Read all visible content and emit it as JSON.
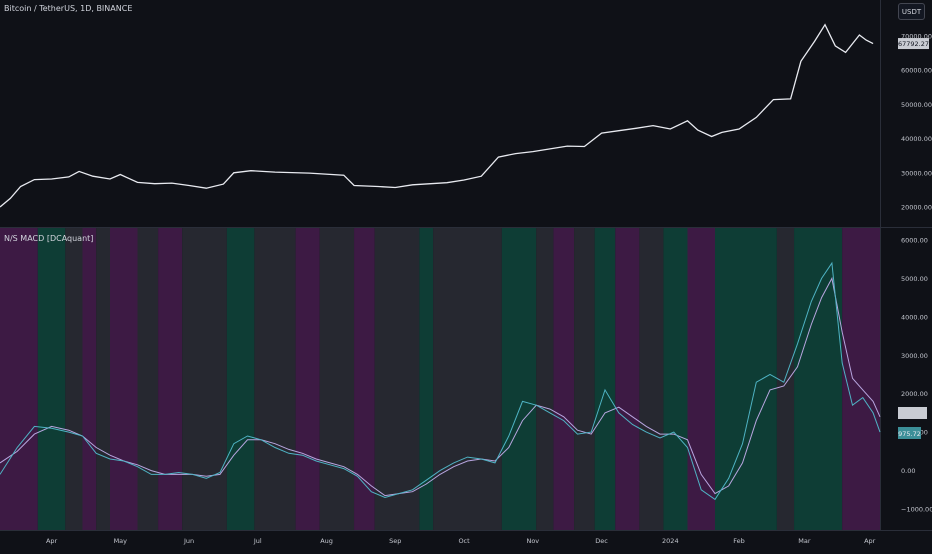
{
  "header": {
    "symbol_title": "Bitcoin / TetherUS, 1D, BINANCE",
    "unit_button": "USDT"
  },
  "indicator": {
    "title": "N/S MACD [DCAquant]"
  },
  "colors": {
    "background": "#0f1117",
    "price_line": "#e8eaf0",
    "macd_line": "#4fb3c4",
    "signal_line": "#b8a6e0",
    "bull_zone": "#0e3d35",
    "bear_zone": "#3d1a44",
    "neutral_zone": "#262830",
    "axis_text": "#c3c6ce",
    "price_label_bg": "#c9ccd3",
    "macd_label_bg": "#3c8f98"
  },
  "price_axis": {
    "ticks": [
      "70000.00",
      "60000.00",
      "50000.00",
      "40000.00",
      "30000.00",
      "20000.00"
    ],
    "last_label": "67792.27"
  },
  "macd_axis": {
    "ticks": [
      "6000.00",
      "5000.00",
      "4000.00",
      "3000.00",
      "2000.00",
      "1000.00",
      "0.00",
      "−1000.00"
    ],
    "signal_label": "",
    "macd_label": "975.72"
  },
  "time_axis": {
    "labels": [
      "Apr",
      "May",
      "Jun",
      "Jul",
      "Aug",
      "Sep",
      "Oct",
      "Nov",
      "Dec",
      "2024",
      "Feb",
      "Mar",
      "Apr"
    ]
  },
  "chart_data": [
    {
      "type": "line",
      "title": "",
      "ylabel": "",
      "ylim": [
        15000,
        75000
      ],
      "x_range": [
        0,
        25
      ],
      "x_tick_positions": [
        1.5,
        3.5,
        5.5,
        7.5,
        9.5,
        11.5,
        13.5,
        15.5,
        17.5,
        19.5,
        21.5,
        23.4,
        25.3
      ],
      "series": [
        {
          "values": [
            [
              0,
              20000
            ],
            [
              0.3,
              22500
            ],
            [
              0.6,
              26000
            ],
            [
              1,
              28000
            ],
            [
              1.5,
              28200
            ],
            [
              2,
              28800
            ],
            [
              2.3,
              30400
            ],
            [
              2.7,
              29000
            ],
            [
              3.2,
              28200
            ],
            [
              3.5,
              29500
            ],
            [
              4,
              27200
            ],
            [
              4.5,
              26800
            ],
            [
              5,
              27000
            ],
            [
              5.5,
              26300
            ],
            [
              6,
              25500
            ],
            [
              6.5,
              26700
            ],
            [
              6.8,
              30000
            ],
            [
              7.3,
              30600
            ],
            [
              8,
              30200
            ],
            [
              9,
              29900
            ],
            [
              10,
              29300
            ],
            [
              10.3,
              26300
            ],
            [
              11,
              26000
            ],
            [
              11.5,
              25700
            ],
            [
              12,
              26500
            ],
            [
              13,
              27100
            ],
            [
              13.5,
              27900
            ],
            [
              14,
              29000
            ],
            [
              14.5,
              34600
            ],
            [
              15,
              35600
            ],
            [
              15.5,
              36200
            ],
            [
              16,
              37000
            ],
            [
              16.5,
              37800
            ],
            [
              17,
              37700
            ],
            [
              17.5,
              41600
            ],
            [
              18,
              42300
            ],
            [
              18.5,
              43000
            ],
            [
              19,
              43800
            ],
            [
              19.5,
              42800
            ],
            [
              20,
              45200
            ],
            [
              20.3,
              42500
            ],
            [
              20.7,
              40600
            ],
            [
              21,
              41800
            ],
            [
              21.5,
              42800
            ],
            [
              22,
              46200
            ],
            [
              22.5,
              51400
            ],
            [
              23,
              51600
            ],
            [
              23.3,
              62600
            ],
            [
              23.7,
              68500
            ],
            [
              24,
              73300
            ],
            [
              24.3,
              67100
            ],
            [
              24.6,
              65200
            ],
            [
              25,
              70300
            ],
            [
              25.2,
              68800
            ],
            [
              25.4,
              67792
            ]
          ]
        }
      ]
    },
    {
      "type": "line",
      "title": "",
      "ylabel": "",
      "ylim": [
        -1000,
        6000
      ],
      "x_range": [
        0,
        25
      ],
      "x_tick_positions": [
        1.5,
        3.5,
        5.5,
        7.5,
        9.5,
        11.5,
        13.5,
        15.5,
        17.5,
        19.5,
        21.5,
        23.4,
        25.3
      ],
      "zones": [
        {
          "from": 0,
          "to": 1.1,
          "state": "bear"
        },
        {
          "from": 1.1,
          "to": 1.9,
          "state": "bull"
        },
        {
          "from": 1.9,
          "to": 2.4,
          "state": "neutral"
        },
        {
          "from": 2.4,
          "to": 2.8,
          "state": "bear"
        },
        {
          "from": 2.8,
          "to": 3.2,
          "state": "neutral"
        },
        {
          "from": 3.2,
          "to": 4.0,
          "state": "bear"
        },
        {
          "from": 4.0,
          "to": 4.6,
          "state": "neutral"
        },
        {
          "from": 4.6,
          "to": 5.3,
          "state": "bear"
        },
        {
          "from": 5.3,
          "to": 6.6,
          "state": "neutral"
        },
        {
          "from": 6.6,
          "to": 7.4,
          "state": "bull"
        },
        {
          "from": 7.4,
          "to": 8.6,
          "state": "neutral"
        },
        {
          "from": 8.6,
          "to": 9.3,
          "state": "bear"
        },
        {
          "from": 9.3,
          "to": 10.3,
          "state": "neutral"
        },
        {
          "from": 10.3,
          "to": 10.9,
          "state": "bear"
        },
        {
          "from": 10.9,
          "to": 12.2,
          "state": "neutral"
        },
        {
          "from": 12.2,
          "to": 12.6,
          "state": "bull"
        },
        {
          "from": 12.6,
          "to": 14.6,
          "state": "neutral"
        },
        {
          "from": 14.6,
          "to": 15.6,
          "state": "bull"
        },
        {
          "from": 15.6,
          "to": 16.1,
          "state": "neutral"
        },
        {
          "from": 16.1,
          "to": 16.7,
          "state": "bear"
        },
        {
          "from": 16.7,
          "to": 17.3,
          "state": "neutral"
        },
        {
          "from": 17.3,
          "to": 17.9,
          "state": "bull"
        },
        {
          "from": 17.9,
          "to": 18.6,
          "state": "bear"
        },
        {
          "from": 18.6,
          "to": 19.3,
          "state": "neutral"
        },
        {
          "from": 19.3,
          "to": 20.0,
          "state": "bull"
        },
        {
          "from": 20.0,
          "to": 20.8,
          "state": "bear"
        },
        {
          "from": 20.8,
          "to": 22.6,
          "state": "bull"
        },
        {
          "from": 22.6,
          "to": 23.1,
          "state": "neutral"
        },
        {
          "from": 23.1,
          "to": 24.5,
          "state": "bull"
        },
        {
          "from": 24.5,
          "to": 25.6,
          "state": "bear"
        },
        {
          "from": 25.6,
          "to": 26,
          "state": "neutral"
        }
      ],
      "series": [
        {
          "values": [
            [
              0,
              -100
            ],
            [
              0.5,
              600
            ],
            [
              1,
              1150
            ],
            [
              1.5,
              1100
            ],
            [
              2,
              1000
            ],
            [
              2.4,
              900
            ],
            [
              2.8,
              450
            ],
            [
              3.2,
              300
            ],
            [
              3.6,
              250
            ],
            [
              4,
              100
            ],
            [
              4.4,
              -100
            ],
            [
              4.8,
              -100
            ],
            [
              5.2,
              -50
            ],
            [
              5.6,
              -100
            ],
            [
              6,
              -200
            ],
            [
              6.4,
              -50
            ],
            [
              6.8,
              700
            ],
            [
              7.2,
              900
            ],
            [
              7.6,
              800
            ],
            [
              8,
              600
            ],
            [
              8.4,
              450
            ],
            [
              8.8,
              400
            ],
            [
              9.2,
              250
            ],
            [
              9.6,
              150
            ],
            [
              10,
              50
            ],
            [
              10.4,
              -150
            ],
            [
              10.8,
              -550
            ],
            [
              11.2,
              -700
            ],
            [
              11.6,
              -600
            ],
            [
              12,
              -500
            ],
            [
              12.4,
              -250
            ],
            [
              12.8,
              0
            ],
            [
              13.2,
              200
            ],
            [
              13.6,
              350
            ],
            [
              14,
              300
            ],
            [
              14.4,
              200
            ],
            [
              14.8,
              900
            ],
            [
              15.2,
              1800
            ],
            [
              15.6,
              1700
            ],
            [
              16,
              1500
            ],
            [
              16.4,
              1300
            ],
            [
              16.8,
              950
            ],
            [
              17.2,
              1000
            ],
            [
              17.6,
              2100
            ],
            [
              18,
              1500
            ],
            [
              18.4,
              1200
            ],
            [
              18.8,
              1000
            ],
            [
              19.2,
              850
            ],
            [
              19.6,
              1000
            ],
            [
              20,
              600
            ],
            [
              20.4,
              -500
            ],
            [
              20.8,
              -750
            ],
            [
              21.2,
              -200
            ],
            [
              21.6,
              700
            ],
            [
              22,
              2300
            ],
            [
              22.4,
              2500
            ],
            [
              22.8,
              2300
            ],
            [
              23.2,
              3300
            ],
            [
              23.6,
              4400
            ],
            [
              23.9,
              5000
            ],
            [
              24.2,
              5400
            ],
            [
              24.5,
              2800
            ],
            [
              24.8,
              1700
            ],
            [
              25.1,
              1900
            ],
            [
              25.4,
              1500
            ],
            [
              25.6,
              1000
            ]
          ]
        },
        {
          "values": [
            [
              0,
              200
            ],
            [
              0.5,
              500
            ],
            [
              1,
              950
            ],
            [
              1.5,
              1150
            ],
            [
              2,
              1050
            ],
            [
              2.4,
              900
            ],
            [
              2.8,
              600
            ],
            [
              3.2,
              400
            ],
            [
              3.6,
              250
            ],
            [
              4,
              150
            ],
            [
              4.4,
              0
            ],
            [
              4.8,
              -100
            ],
            [
              5.2,
              -100
            ],
            [
              5.6,
              -100
            ],
            [
              6,
              -150
            ],
            [
              6.4,
              -100
            ],
            [
              6.8,
              400
            ],
            [
              7.2,
              800
            ],
            [
              7.6,
              800
            ],
            [
              8,
              700
            ],
            [
              8.4,
              550
            ],
            [
              8.8,
              450
            ],
            [
              9.2,
              300
            ],
            [
              9.6,
              200
            ],
            [
              10,
              100
            ],
            [
              10.4,
              -100
            ],
            [
              10.8,
              -400
            ],
            [
              11.2,
              -650
            ],
            [
              11.6,
              -600
            ],
            [
              12,
              -550
            ],
            [
              12.4,
              -350
            ],
            [
              12.8,
              -100
            ],
            [
              13.2,
              100
            ],
            [
              13.6,
              250
            ],
            [
              14,
              300
            ],
            [
              14.4,
              250
            ],
            [
              14.8,
              600
            ],
            [
              15.2,
              1300
            ],
            [
              15.6,
              1700
            ],
            [
              16,
              1600
            ],
            [
              16.4,
              1400
            ],
            [
              16.8,
              1050
            ],
            [
              17.2,
              950
            ],
            [
              17.6,
              1500
            ],
            [
              18,
              1650
            ],
            [
              18.4,
              1400
            ],
            [
              18.8,
              1150
            ],
            [
              19.2,
              950
            ],
            [
              19.6,
              950
            ],
            [
              20,
              800
            ],
            [
              20.4,
              -100
            ],
            [
              20.8,
              -600
            ],
            [
              21.2,
              -400
            ],
            [
              21.6,
              200
            ],
            [
              22,
              1300
            ],
            [
              22.4,
              2100
            ],
            [
              22.8,
              2200
            ],
            [
              23.2,
              2700
            ],
            [
              23.6,
              3800
            ],
            [
              23.9,
              4500
            ],
            [
              24.2,
              5000
            ],
            [
              24.5,
              3600
            ],
            [
              24.8,
              2400
            ],
            [
              25.1,
              2100
            ],
            [
              25.4,
              1800
            ],
            [
              25.6,
              1400
            ]
          ]
        }
      ]
    }
  ]
}
